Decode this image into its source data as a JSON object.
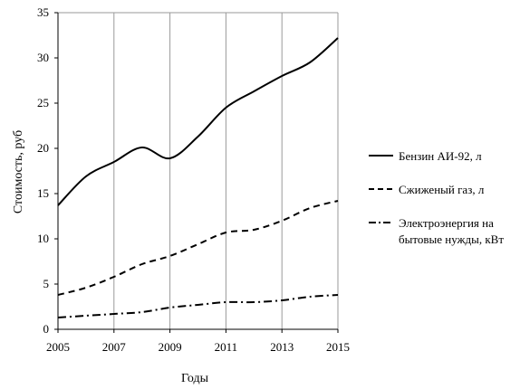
{
  "chart_data": {
    "type": "line",
    "title": "",
    "xlabel": "Годы",
    "ylabel": "Стоимость, руб",
    "xlim": [
      2005,
      2015
    ],
    "ylim": [
      0,
      35
    ],
    "x_ticks": [
      2005,
      2007,
      2009,
      2011,
      2013,
      2015
    ],
    "y_ticks": [
      0,
      5,
      10,
      15,
      20,
      25,
      30,
      35
    ],
    "grid": "vertical",
    "legend_position": "right",
    "series": [
      {
        "name": "Бензин АИ-92, л",
        "style": "solid",
        "x": [
          2005,
          2006,
          2007,
          2008,
          2009,
          2010,
          2011,
          2012,
          2013,
          2014,
          2015
        ],
        "values": [
          13.7,
          16.9,
          18.5,
          20.1,
          18.9,
          21.3,
          24.5,
          26.3,
          28.0,
          29.5,
          32.2
        ]
      },
      {
        "name": "Сжиженый газ, л",
        "style": "dashed",
        "x": [
          2005,
          2006,
          2007,
          2008,
          2009,
          2010,
          2011,
          2012,
          2013,
          2014,
          2015
        ],
        "values": [
          3.8,
          4.6,
          5.8,
          7.2,
          8.1,
          9.4,
          10.7,
          11.0,
          12.0,
          13.4,
          14.2
        ]
      },
      {
        "name": "Электроэнергия на бытовые нужды, кВт",
        "label_lines": [
          "Электроэнергия на",
          "бытовые нужды, кВт"
        ],
        "style": "dashdot",
        "x": [
          2005,
          2006,
          2007,
          2008,
          2009,
          2010,
          2011,
          2012,
          2013,
          2014,
          2015
        ],
        "values": [
          1.3,
          1.5,
          1.7,
          1.9,
          2.4,
          2.7,
          3.0,
          3.0,
          3.2,
          3.6,
          3.8
        ]
      }
    ]
  }
}
